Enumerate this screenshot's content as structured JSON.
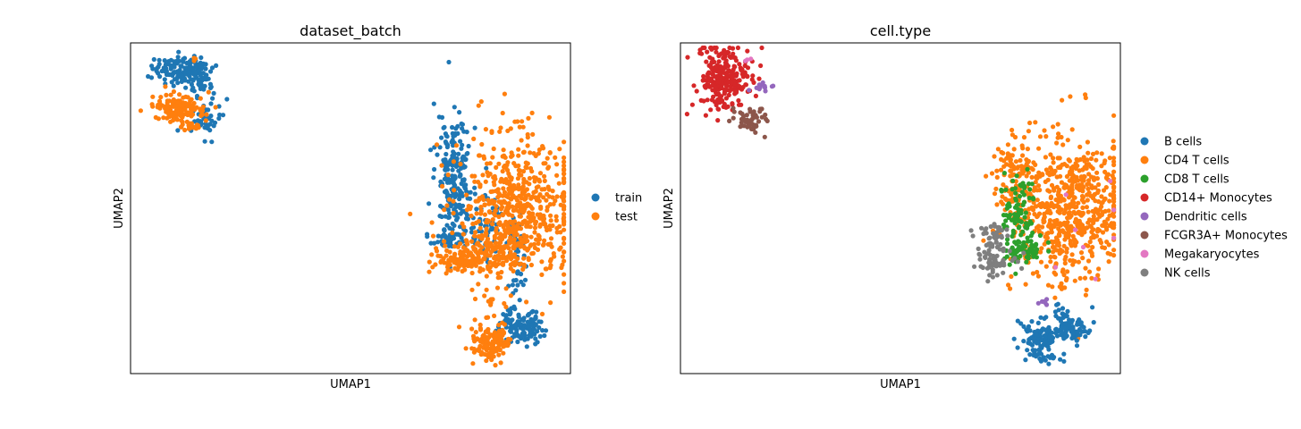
{
  "chart_data": [
    {
      "type": "scatter",
      "title": "dataset_batch",
      "xlabel": "UMAP1",
      "ylabel": "UMAP2",
      "legend_position": "right-outside",
      "grid": false,
      "ticks": false,
      "series": [
        {
          "name": "train",
          "color": "#1f77b4"
        },
        {
          "name": "test",
          "color": "#ff7f0e"
        }
      ],
      "clusters": [
        {
          "series": "train",
          "cx": 0.12,
          "cy": 0.08,
          "sx": 0.035,
          "sy": 0.02,
          "n": 140
        },
        {
          "series": "train",
          "cx": 0.16,
          "cy": 0.13,
          "sx": 0.02,
          "sy": 0.015,
          "n": 30
        },
        {
          "series": "train",
          "cx": 0.17,
          "cy": 0.23,
          "sx": 0.018,
          "sy": 0.03,
          "n": 45
        },
        {
          "series": "test",
          "cx": 0.11,
          "cy": 0.2,
          "sx": 0.03,
          "sy": 0.02,
          "n": 130
        },
        {
          "series": "test",
          "cx": 0.14,
          "cy": 0.255,
          "sx": 0.012,
          "sy": 0.01,
          "n": 18
        },
        {
          "series": "test",
          "cx": 0.148,
          "cy": 0.05,
          "sx": 0.004,
          "sy": 0.004,
          "n": 3
        },
        {
          "series": "train",
          "cx": 0.735,
          "cy": 0.4,
          "sx": 0.02,
          "sy": 0.085,
          "n": 210
        },
        {
          "series": "train",
          "cx": 0.72,
          "cy": 0.585,
          "sx": 0.022,
          "sy": 0.018,
          "n": 40
        },
        {
          "series": "train",
          "cx": 0.815,
          "cy": 0.55,
          "sx": 0.035,
          "sy": 0.06,
          "n": 70
        },
        {
          "series": "train",
          "cx": 0.88,
          "cy": 0.67,
          "sx": 0.008,
          "sy": 0.06,
          "n": 45
        },
        {
          "series": "train",
          "cx": 0.885,
          "cy": 0.86,
          "sx": 0.025,
          "sy": 0.025,
          "n": 110
        },
        {
          "series": "train",
          "cx": 0.86,
          "cy": 0.82,
          "sx": 0.01,
          "sy": 0.02,
          "n": 15
        },
        {
          "series": "test",
          "cx": 0.88,
          "cy": 0.5,
          "sx": 0.065,
          "sy": 0.11,
          "n": 600
        },
        {
          "series": "test",
          "cx": 0.79,
          "cy": 0.63,
          "sx": 0.04,
          "sy": 0.03,
          "n": 120
        },
        {
          "series": "test",
          "cx": 0.74,
          "cy": 0.665,
          "sx": 0.025,
          "sy": 0.015,
          "n": 60
        },
        {
          "series": "test",
          "cx": 0.82,
          "cy": 0.907,
          "sx": 0.022,
          "sy": 0.032,
          "n": 130
        },
        {
          "series": "test",
          "cx": 0.82,
          "cy": 0.78,
          "sx": 0.005,
          "sy": 0.008,
          "n": 6
        }
      ]
    },
    {
      "type": "scatter",
      "title": "cell.type",
      "xlabel": "UMAP1",
      "ylabel": "UMAP2",
      "legend_position": "right-outside",
      "grid": false,
      "ticks": false,
      "series": [
        {
          "name": "B cells",
          "color": "#1f77b4"
        },
        {
          "name": "CD4 T cells",
          "color": "#ff7f0e"
        },
        {
          "name": "CD8 T cells",
          "color": "#2ca02c"
        },
        {
          "name": "CD14+ Monocytes",
          "color": "#d62728"
        },
        {
          "name": "Dendritic cells",
          "color": "#9467bd"
        },
        {
          "name": "FCGR3A+ Monocytes",
          "color": "#8c564b"
        },
        {
          "name": "Megakaryocytes",
          "color": "#e377c2"
        },
        {
          "name": "NK cells",
          "color": "#7f7f7f"
        }
      ],
      "clusters": [
        {
          "series": "CD14+ Monocytes",
          "cx": 0.1,
          "cy": 0.11,
          "sx": 0.03,
          "sy": 0.05,
          "n": 240
        },
        {
          "series": "FCGR3A+ Monocytes",
          "cx": 0.16,
          "cy": 0.23,
          "sx": 0.02,
          "sy": 0.02,
          "n": 50
        },
        {
          "series": "Dendritic cells",
          "cx": 0.18,
          "cy": 0.135,
          "sx": 0.015,
          "sy": 0.008,
          "n": 14
        },
        {
          "series": "Megakaryocytes",
          "cx": 0.15,
          "cy": 0.05,
          "sx": 0.004,
          "sy": 0.003,
          "n": 3
        },
        {
          "series": "CD4 T cells",
          "cx": 0.75,
          "cy": 0.39,
          "sx": 0.02,
          "sy": 0.05,
          "n": 80
        },
        {
          "series": "CD4 T cells",
          "cx": 0.88,
          "cy": 0.5,
          "sx": 0.065,
          "sy": 0.11,
          "n": 620
        },
        {
          "series": "CD4 T cells",
          "cx": 0.87,
          "cy": 0.68,
          "sx": 0.008,
          "sy": 0.05,
          "n": 20
        },
        {
          "series": "CD8 T cells",
          "cx": 0.77,
          "cy": 0.5,
          "sx": 0.02,
          "sy": 0.06,
          "n": 90
        },
        {
          "series": "CD8 T cells",
          "cx": 0.78,
          "cy": 0.62,
          "sx": 0.025,
          "sy": 0.025,
          "n": 60
        },
        {
          "series": "NK cells",
          "cx": 0.71,
          "cy": 0.59,
          "sx": 0.018,
          "sy": 0.02,
          "n": 45
        },
        {
          "series": "NK cells",
          "cx": 0.71,
          "cy": 0.67,
          "sx": 0.022,
          "sy": 0.02,
          "n": 55
        },
        {
          "series": "B cells",
          "cx": 0.82,
          "cy": 0.9,
          "sx": 0.022,
          "sy": 0.03,
          "n": 110
        },
        {
          "series": "B cells",
          "cx": 0.885,
          "cy": 0.86,
          "sx": 0.02,
          "sy": 0.02,
          "n": 90
        },
        {
          "series": "B cells",
          "cx": 0.86,
          "cy": 0.815,
          "sx": 0.008,
          "sy": 0.015,
          "n": 10
        },
        {
          "series": "Dendritic cells",
          "cx": 0.825,
          "cy": 0.78,
          "sx": 0.007,
          "sy": 0.005,
          "n": 6
        },
        {
          "series": "Megakaryocytes",
          "cx": 0.9,
          "cy": 0.53,
          "sx": 0.06,
          "sy": 0.1,
          "n": 8
        }
      ]
    }
  ]
}
